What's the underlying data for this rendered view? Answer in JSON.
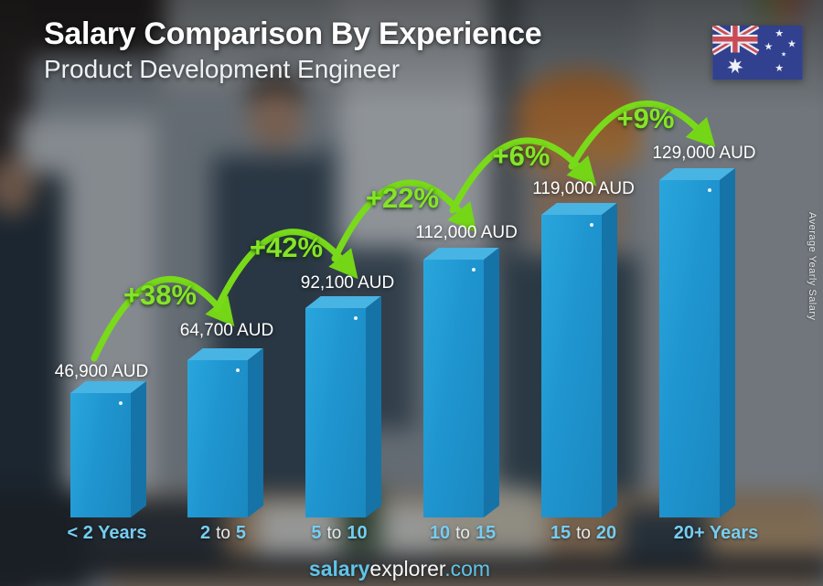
{
  "header": {
    "title": "Salary Comparison By Experience",
    "subtitle": "Product Development Engineer"
  },
  "flag": {
    "country": "Australia"
  },
  "side_label": "Average Yearly Salary",
  "footer": {
    "part_bold": "salary",
    "part_regular": "explorer",
    "part_domain": ".com"
  },
  "colors": {
    "bar_front": "#2095cf",
    "bar_side": "#1573a8",
    "bar_top": "#47b4e3",
    "accent_green": "#85e428",
    "category_blue": "#76cdf1",
    "brand_blue": "#5fc4ea"
  },
  "chart_data": {
    "type": "bar",
    "title": "Salary Comparison By Experience",
    "subtitle": "Product Development Engineer",
    "unit": "AUD",
    "ylabel": "Average Yearly Salary",
    "categories": [
      "< 2 Years",
      "2 to 5",
      "5 to 10",
      "10 to 15",
      "15 to 20",
      "20+ Years"
    ],
    "values": [
      46900,
      64700,
      92100,
      112000,
      119000,
      129000
    ],
    "value_labels": [
      "46,900 AUD",
      "64,700 AUD",
      "92,100 AUD",
      "112,000 AUD",
      "119,000 AUD",
      "129,000 AUD"
    ],
    "pct_changes": [
      "+38%",
      "+42%",
      "+22%",
      "+6%",
      "+9%"
    ]
  },
  "ui": {
    "cat_parts": [
      [
        "< 2 Years",
        "",
        ""
      ],
      [
        "2",
        "to",
        "5"
      ],
      [
        "5",
        "to",
        "10"
      ],
      [
        "10",
        "to",
        "15"
      ],
      [
        "15",
        "to",
        "20"
      ],
      [
        "20+ Years",
        "",
        ""
      ]
    ]
  }
}
